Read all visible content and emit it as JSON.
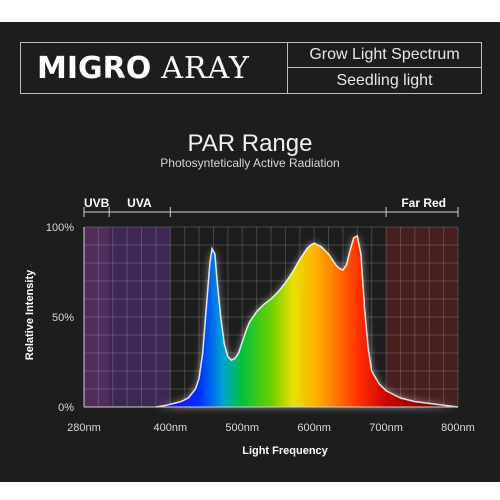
{
  "header": {
    "brand_primary": "MIGRO",
    "brand_secondary": "ARAY",
    "line1": "Grow Light Spectrum",
    "line2": "Seedling light"
  },
  "chart_data": {
    "type": "area",
    "title": "PAR Range",
    "subtitle": "Photosyntetically Active Radiation",
    "xlabel": "Light Frequency",
    "ylabel": "Relative Intensity",
    "xlim": [
      280,
      800
    ],
    "ylim": [
      0,
      100
    ],
    "x_ticks": [
      "280nm",
      "400nm",
      "500nm",
      "600nm",
      "700nm",
      "800nm"
    ],
    "y_ticks": [
      "0%",
      "50%",
      "100%"
    ],
    "bands": [
      {
        "label": "UVB",
        "start": 280,
        "end": 315,
        "color": "#7a3a8a"
      },
      {
        "label": "UVA",
        "start": 315,
        "end": 400,
        "color": "#5a2f7e"
      },
      {
        "label": "Far Red",
        "start": 700,
        "end": 800,
        "color": "#6a2020"
      }
    ],
    "band_boundaries": [
      315,
      400,
      700
    ],
    "grid": true,
    "series": [
      {
        "x": [
          380,
          395,
          405,
          415,
          425,
          435,
          440,
          445,
          450,
          455,
          458,
          462,
          465,
          470,
          475,
          480,
          485,
          490,
          495,
          500,
          505,
          510,
          520,
          530,
          540,
          550,
          560,
          570,
          580,
          590,
          595,
          600,
          605,
          610,
          620,
          630,
          635,
          640,
          645,
          650,
          655,
          660,
          665,
          670,
          675,
          680,
          690,
          700,
          720,
          740,
          760,
          780,
          800
        ],
        "y": [
          0,
          1,
          2,
          3,
          5,
          10,
          16,
          30,
          55,
          80,
          88,
          85,
          70,
          50,
          35,
          28,
          26,
          27,
          30,
          36,
          42,
          47,
          53,
          57,
          60,
          64,
          69,
          75,
          82,
          88,
          90,
          91,
          90,
          89,
          85,
          79,
          77,
          76,
          79,
          87,
          94,
          95,
          85,
          55,
          33,
          20,
          13,
          9,
          5,
          3,
          2,
          1,
          0
        ]
      }
    ]
  }
}
